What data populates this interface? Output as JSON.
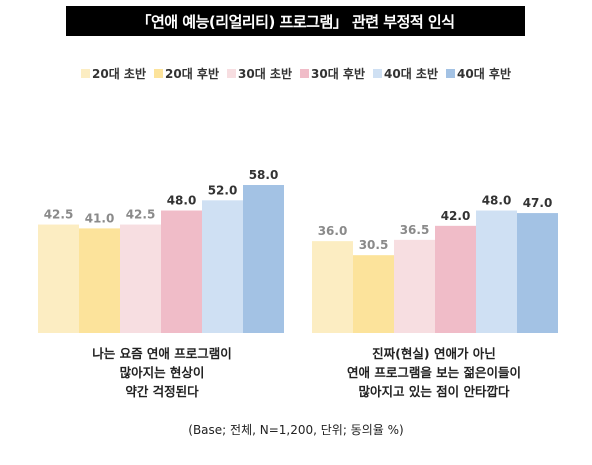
{
  "chart_data": {
    "type": "bar",
    "title": "「연애 예능(리얼리티) 프로그램」 관련 부정적 인식",
    "categories": [
      "나는 요즘 연애 프로그램이\n많아지는 현상이\n약간 걱정된다",
      "진짜(현실) 연애가 아닌\n연애 프로그램을 보는 젊은이들이\n많아지고 있는 점이 안타깝다"
    ],
    "series": [
      {
        "name": "20대 초반",
        "color": "#FCEDC2",
        "labelColor": "#8A8A8A",
        "values": [
          42.5,
          36.0
        ]
      },
      {
        "name": "20대 후반",
        "color": "#FCE39B",
        "labelColor": "#8A8A8A",
        "values": [
          41.0,
          30.5
        ]
      },
      {
        "name": "30대 초반",
        "color": "#F7DEE1",
        "labelColor": "#8A8A8A",
        "values": [
          42.5,
          36.5
        ]
      },
      {
        "name": "30대 후반",
        "color": "#F0BCC8",
        "labelColor": "#333333",
        "values": [
          48.0,
          42.0
        ]
      },
      {
        "name": "40대 초반",
        "color": "#CFE0F3",
        "labelColor": "#333333",
        "values": [
          52.0,
          48.0
        ]
      },
      {
        "name": "40대 후반",
        "color": "#A3C2E4",
        "labelColor": "#333333",
        "values": [
          58.0,
          47.0
        ]
      }
    ],
    "ylim": [
      0,
      58
    ],
    "footnote": "(Base; 전체, N=1,200, 단위; 동의율 %)"
  }
}
